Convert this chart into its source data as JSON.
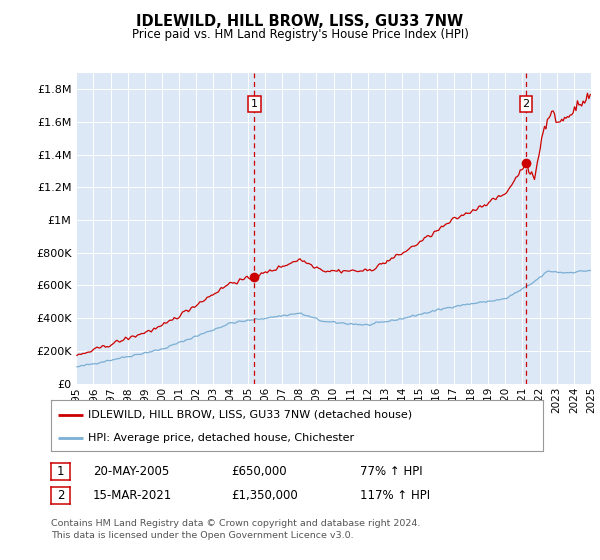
{
  "title": "IDLEWILD, HILL BROW, LISS, GU33 7NW",
  "subtitle": "Price paid vs. HM Land Registry's House Price Index (HPI)",
  "xlim": [
    1995.0,
    2025.0
  ],
  "ylim": [
    0,
    1900000
  ],
  "yticks": [
    0,
    200000,
    400000,
    600000,
    800000,
    1000000,
    1200000,
    1400000,
    1600000,
    1800000
  ],
  "ytick_labels": [
    "£0",
    "£200K",
    "£400K",
    "£600K",
    "£800K",
    "£1M",
    "£1.2M",
    "£1.4M",
    "£1.6M",
    "£1.8M"
  ],
  "xticks": [
    1995,
    1996,
    1997,
    1998,
    1999,
    2000,
    2001,
    2002,
    2003,
    2004,
    2005,
    2006,
    2007,
    2008,
    2009,
    2010,
    2011,
    2012,
    2013,
    2014,
    2015,
    2016,
    2017,
    2018,
    2019,
    2020,
    2021,
    2022,
    2023,
    2024,
    2025
  ],
  "bg_color": "#dce8f5",
  "grid_color": "#ffffff",
  "red_line_color": "#cc0000",
  "blue_line_color": "#7bafd4",
  "marker1_x": 2005.38,
  "marker1_y": 650000,
  "marker2_x": 2021.21,
  "marker2_y": 1350000,
  "vline1_x": 2005.38,
  "vline2_x": 2021.21,
  "legend_label_red": "IDLEWILD, HILL BROW, LISS, GU33 7NW (detached house)",
  "legend_label_blue": "HPI: Average price, detached house, Chichester",
  "table_row1": [
    "1",
    "20-MAY-2005",
    "£650,000",
    "77% ↑ HPI"
  ],
  "table_row2": [
    "2",
    "15-MAR-2021",
    "£1,350,000",
    "117% ↑ HPI"
  ],
  "footer": "Contains HM Land Registry data © Crown copyright and database right 2024.\nThis data is licensed under the Open Government Licence v3.0."
}
